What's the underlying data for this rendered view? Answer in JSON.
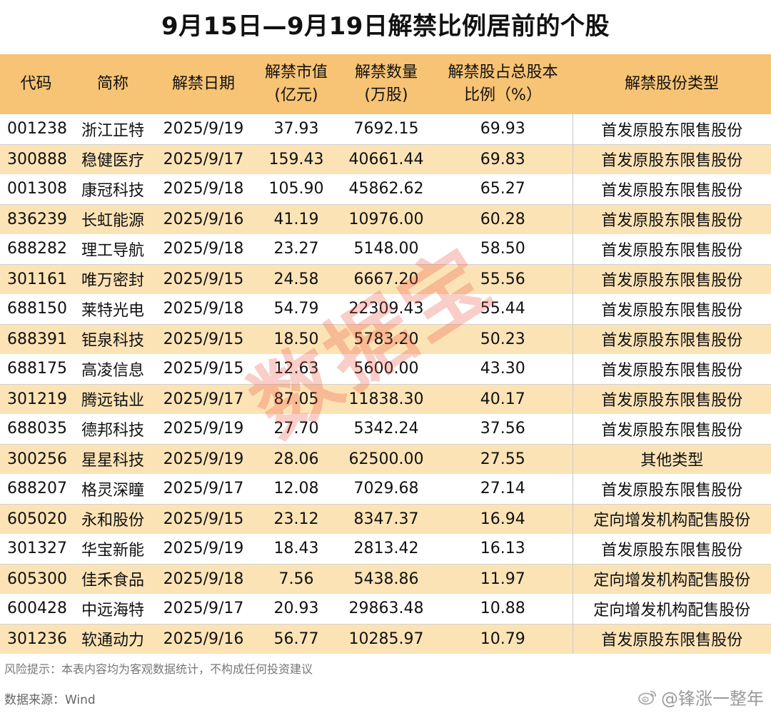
{
  "title": "9月15日—9月19日解禁比例居前的个股",
  "chart_data": {
    "type": "table",
    "columns": [
      [
        "代码"
      ],
      [
        "简称"
      ],
      [
        "解禁日期"
      ],
      [
        "解禁市值",
        "(亿元)"
      ],
      [
        "解禁数量",
        "(万股)"
      ],
      [
        "解禁股占总股本",
        "比例（%）"
      ],
      [
        "解禁股份类型"
      ]
    ],
    "rows": [
      [
        "001238",
        "浙江正特",
        "2025/9/19",
        "37.93",
        "7692.15",
        "69.93",
        "首发原股东限售股份"
      ],
      [
        "300888",
        "稳健医疗",
        "2025/9/17",
        "159.43",
        "40661.44",
        "69.83",
        "首发原股东限售股份"
      ],
      [
        "001308",
        "康冠科技",
        "2025/9/18",
        "105.90",
        "45862.62",
        "65.27",
        "首发原股东限售股份"
      ],
      [
        "836239",
        "长虹能源",
        "2025/9/16",
        "41.19",
        "10976.00",
        "60.28",
        "首发原股东限售股份"
      ],
      [
        "688282",
        "理工导航",
        "2025/9/18",
        "23.27",
        "5148.00",
        "58.50",
        "首发原股东限售股份"
      ],
      [
        "301161",
        "唯万密封",
        "2025/9/15",
        "24.58",
        "6667.20",
        "55.56",
        "首发原股东限售股份"
      ],
      [
        "688150",
        "莱特光电",
        "2025/9/18",
        "54.79",
        "22309.43",
        "55.44",
        "首发原股东限售股份"
      ],
      [
        "688391",
        "钜泉科技",
        "2025/9/15",
        "18.50",
        "5783.20",
        "50.23",
        "首发原股东限售股份"
      ],
      [
        "688175",
        "高凌信息",
        "2025/9/15",
        "12.63",
        "5600.00",
        "43.30",
        "首发原股东限售股份"
      ],
      [
        "301219",
        "腾远钴业",
        "2025/9/17",
        "87.05",
        "11838.30",
        "40.17",
        "首发原股东限售股份"
      ],
      [
        "688035",
        "德邦科技",
        "2025/9/19",
        "27.70",
        "5342.24",
        "37.56",
        "首发原股东限售股份"
      ],
      [
        "300256",
        "星星科技",
        "2025/9/19",
        "28.06",
        "62500.00",
        "27.55",
        "其他类型"
      ],
      [
        "688207",
        "格灵深瞳",
        "2025/9/17",
        "12.08",
        "7029.68",
        "27.14",
        "首发原股东限售股份"
      ],
      [
        "605020",
        "永和股份",
        "2025/9/15",
        "23.12",
        "8347.37",
        "16.94",
        "定向增发机构配售股份"
      ],
      [
        "301327",
        "华宝新能",
        "2025/9/19",
        "18.43",
        "2813.42",
        "16.13",
        "首发原股东限售股份"
      ],
      [
        "605300",
        "佳禾食品",
        "2025/9/18",
        "7.56",
        "5438.86",
        "11.97",
        "定向增发机构配售股份"
      ],
      [
        "600428",
        "中远海特",
        "2025/9/17",
        "20.93",
        "29863.48",
        "10.88",
        "定向增发机构配售股份"
      ],
      [
        "301236",
        "软通动力",
        "2025/9/16",
        "56.77",
        "10285.97",
        "10.79",
        "首发原股东限售股份"
      ]
    ]
  },
  "watermark": "数据宝",
  "note": "风险提示：本表内容均为客观数据统计，不构成任何投资建议",
  "source": "数据来源：Wind",
  "credit": "@锋涨一整年",
  "colors": {
    "header_bg": "#f7c374",
    "stripe_bg": "#fce3b6",
    "watermark": "#e9503c"
  },
  "icons": {
    "credit": "weibo-icon"
  }
}
